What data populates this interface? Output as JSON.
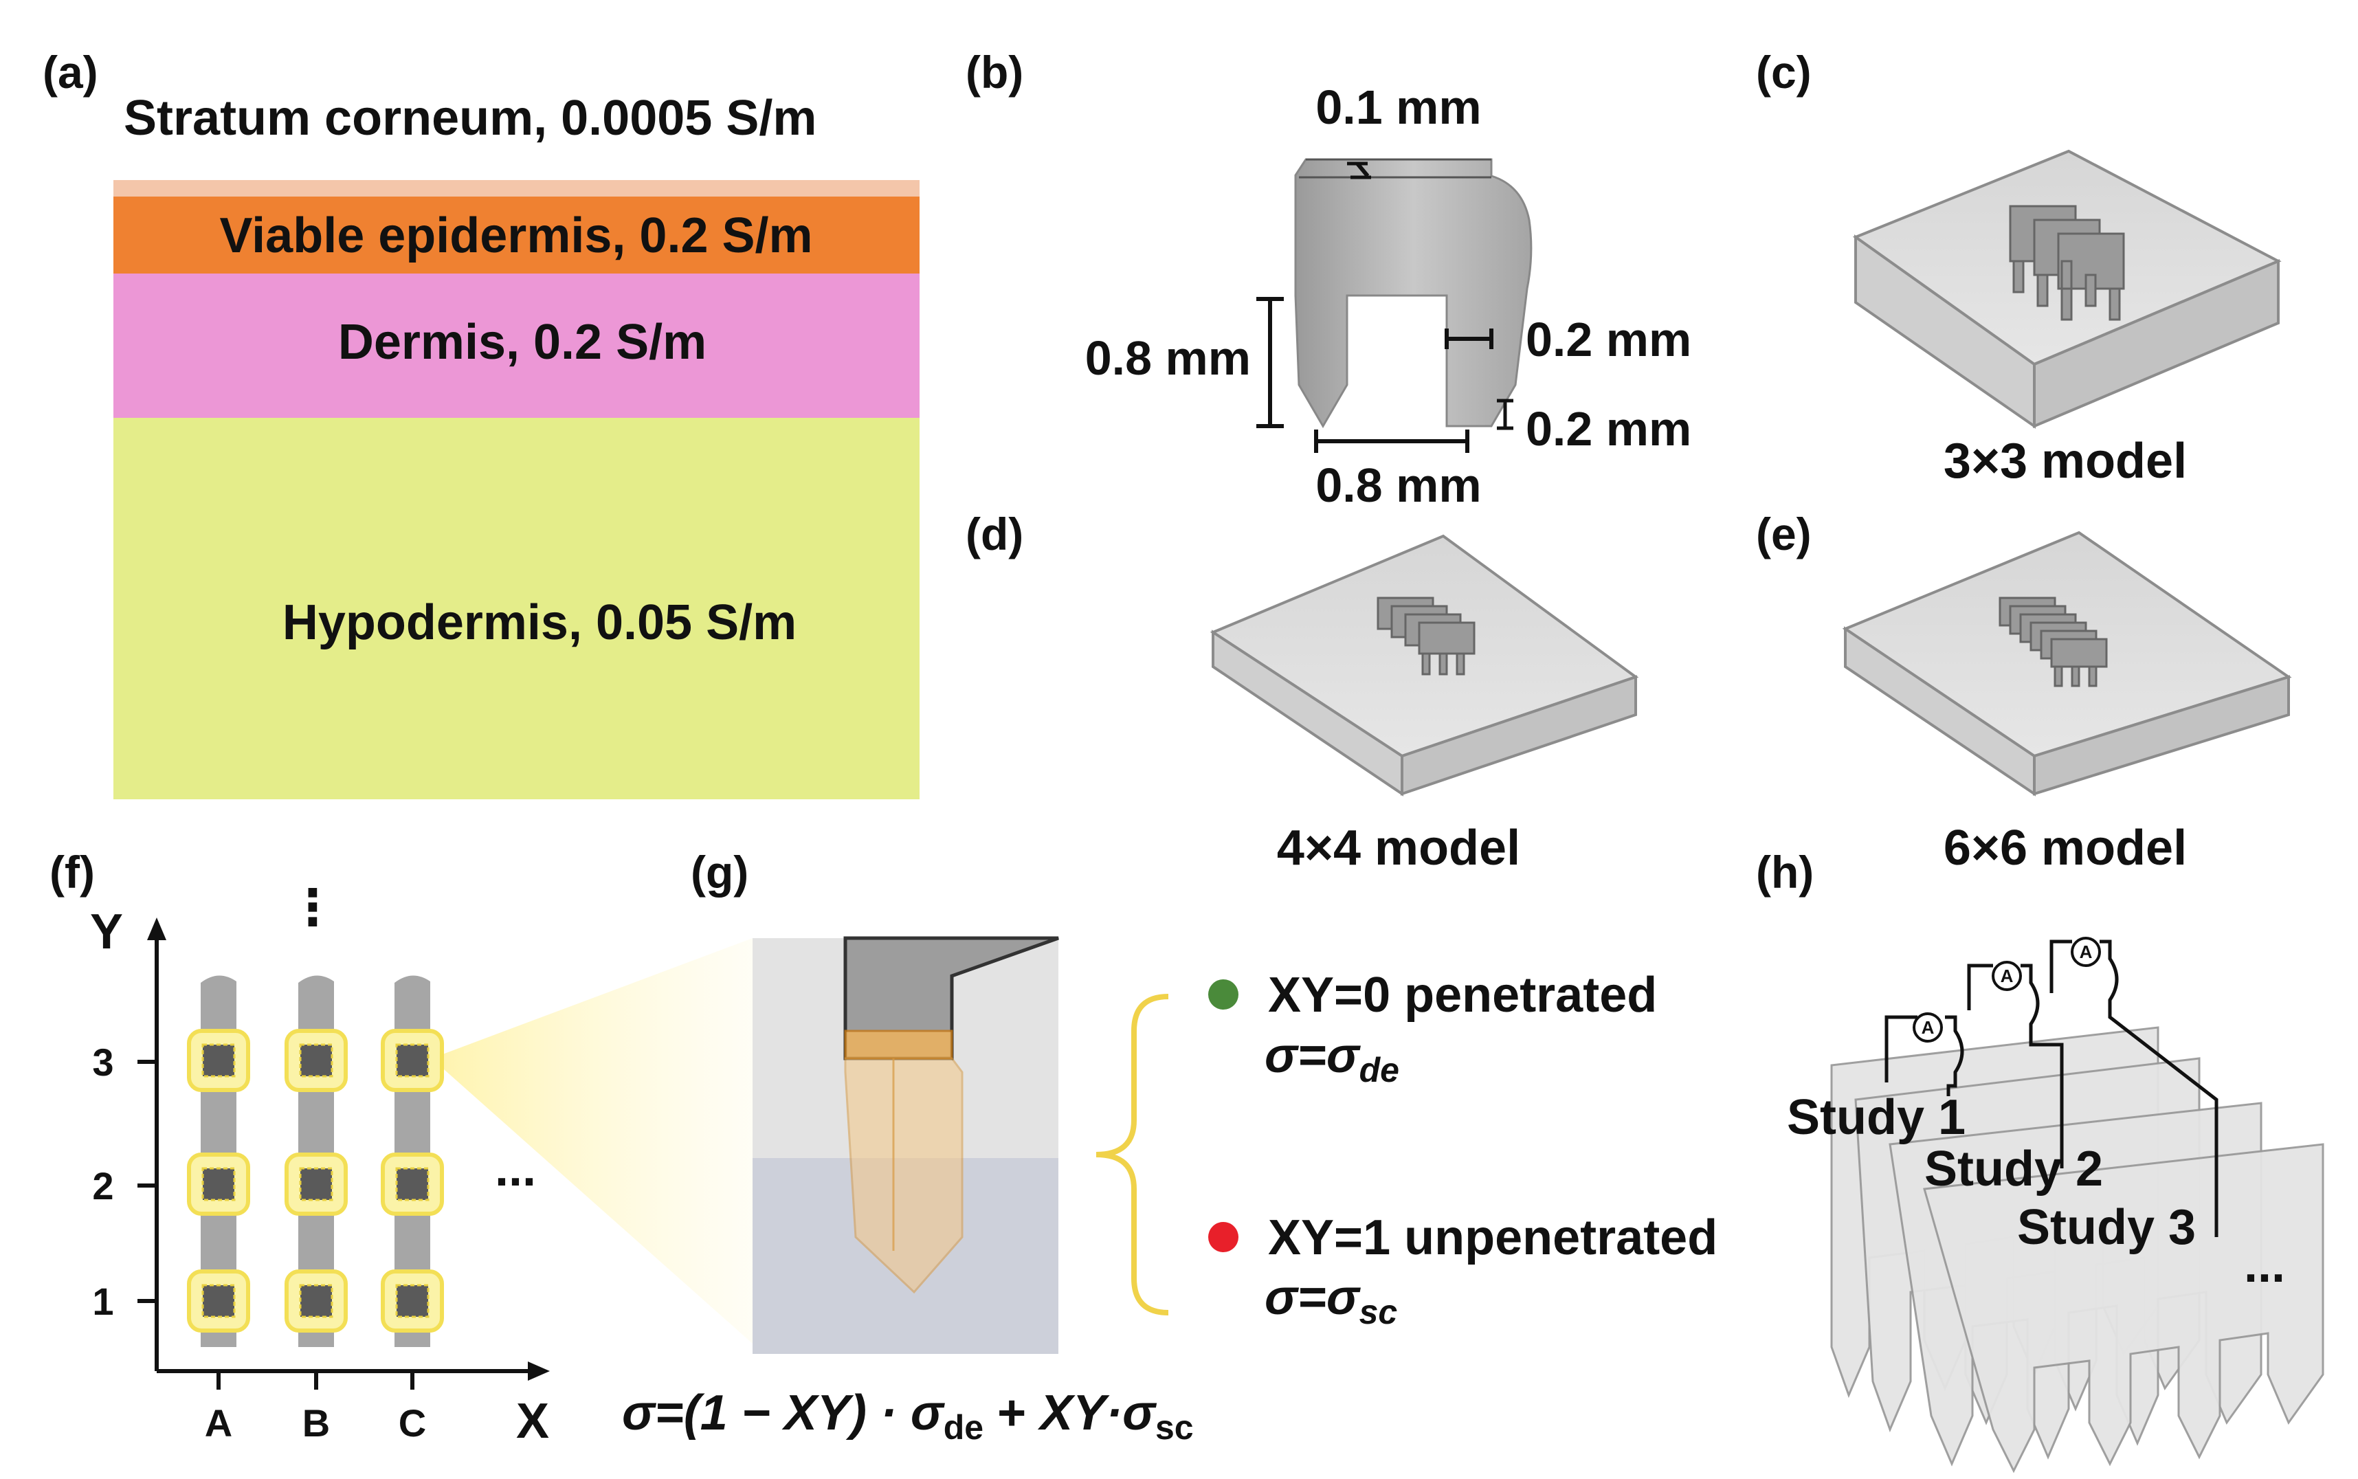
{
  "panels": {
    "a": "(a)",
    "b": "(b)",
    "c": "(c)",
    "d": "(d)",
    "e": "(e)",
    "f": "(f)",
    "g": "(g)",
    "h": "(h)"
  },
  "layers": {
    "stratum_corneum": "Stratum corneum, 0.0005 S/m",
    "viable_epidermis": "Viable epidermis, 0.2 S/m",
    "dermis": "Dermis, 0.2 S/m",
    "hypodermis": "Hypodermis, 0.05 S/m"
  },
  "layer_colors": {
    "stratum_corneum": "#f4c6aa",
    "viable_epidermis": "#ef8131",
    "dermis": "#ec97d6",
    "hypodermis": "#e4ed8a"
  },
  "dimensions": {
    "top": "0.1 mm",
    "height": "0.8 mm",
    "width": "0.8 mm",
    "tip_width": "0.2 mm",
    "tip_height": "0.2 mm"
  },
  "models": {
    "m3": "3×3 model",
    "m4": "4×4 model",
    "m6": "6×6 model"
  },
  "grid": {
    "y_axis": "Y",
    "x_axis": "X",
    "y_ticks": [
      "3",
      "2",
      "1"
    ],
    "x_ticks": [
      "A",
      "B",
      "C"
    ],
    "ellipsis": "..."
  },
  "legend": {
    "penetrated": "XY=0 penetrated",
    "penetrated_sigma": "σ=σ",
    "penetrated_sub": "de",
    "unpenetrated": "XY=1 unpenetrated",
    "unpenetrated_sigma": "σ=σ",
    "unpenetrated_sub": "sc",
    "penetrated_color": "#4a8a3a",
    "unpenetrated_color": "#e8202a"
  },
  "formula": {
    "a": "σ=(1 − ",
    "b": "XY",
    "c": ") · σ",
    "d": "de",
    "e": " + ",
    "f": "XY",
    "g": "·σ",
    "h": "sc"
  },
  "studies": {
    "s1": "Study 1",
    "s2": "Study 2",
    "s3": "Study 3",
    "more": "..."
  }
}
